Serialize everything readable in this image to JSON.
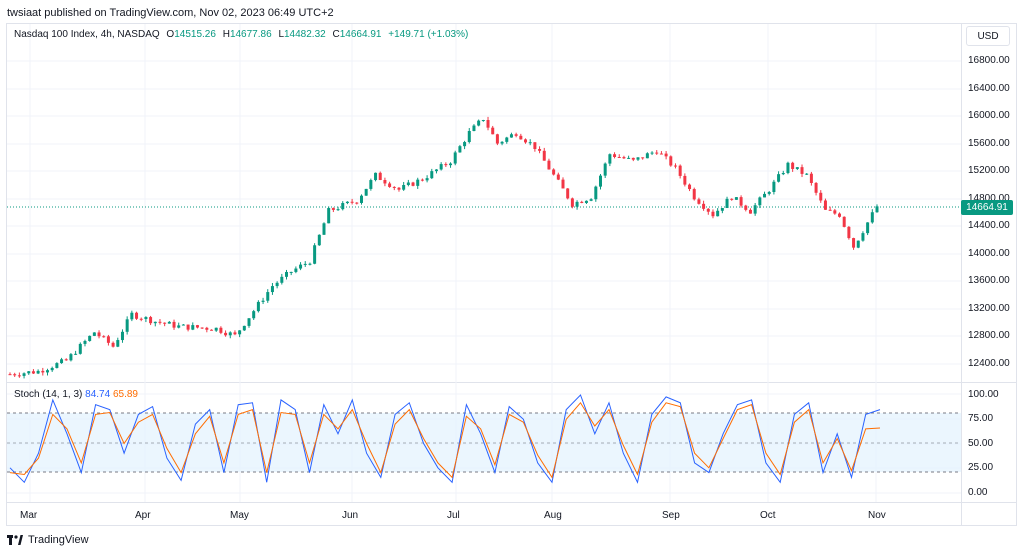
{
  "header": {
    "publisher_line": "twsiaat published on TradingView.com, Nov 02, 2023 06:49 UTC+2"
  },
  "symbol": {
    "name": "Nasdaq 100 Index, 4h, NASDAQ",
    "open_label": "O",
    "open": "14515.26",
    "high_label": "H",
    "high": "14677.86",
    "low_label": "L",
    "low": "14482.32",
    "close_label": "C",
    "close": "14664.91",
    "change": "+149.71 (+1.03%)"
  },
  "currency": "USD",
  "last_price": "14664.91",
  "price_axis": [
    "16800.00",
    "16400.00",
    "16000.00",
    "15600.00",
    "15200.00",
    "14800.00",
    "14400.00",
    "14000.00",
    "13600.00",
    "13200.00",
    "12800.00",
    "12400.00"
  ],
  "stoch": {
    "label": "Stoch (14, 1, 3)",
    "k": "84.74",
    "d": "65.89"
  },
  "stoch_axis": [
    "100.00",
    "75.00",
    "50.00",
    "25.00",
    "0.00"
  ],
  "time_axis": [
    "Mar",
    "Apr",
    "May",
    "Jun",
    "Jul",
    "Aug",
    "Sep",
    "Oct",
    "Nov"
  ],
  "footer": {
    "brand": "TradingView"
  },
  "colors": {
    "up": "#089981",
    "down": "#f23645",
    "k_line": "#2962ff",
    "d_line": "#ff6d00",
    "band": "#e3f2fd"
  },
  "chart_data": {
    "type": "candlestick",
    "title": "Nasdaq 100 Index, 4h, NASDAQ",
    "ylim": [
      12200,
      17000
    ],
    "price_path": [
      {
        "x": 0,
        "y": 12310
      },
      {
        "x": 6,
        "y": 12350
      },
      {
        "x": 12,
        "y": 12500
      },
      {
        "x": 18,
        "y": 12900
      },
      {
        "x": 22,
        "y": 12700
      },
      {
        "x": 26,
        "y": 13150
      },
      {
        "x": 31,
        "y": 13050
      },
      {
        "x": 36,
        "y": 12980
      },
      {
        "x": 44,
        "y": 12950
      },
      {
        "x": 48,
        "y": 12850
      },
      {
        "x": 56,
        "y": 13550
      },
      {
        "x": 60,
        "y": 13750
      },
      {
        "x": 64,
        "y": 13900
      },
      {
        "x": 68,
        "y": 14600
      },
      {
        "x": 74,
        "y": 14750
      },
      {
        "x": 78,
        "y": 15100
      },
      {
        "x": 83,
        "y": 14900
      },
      {
        "x": 88,
        "y": 15050
      },
      {
        "x": 94,
        "y": 15300
      },
      {
        "x": 98,
        "y": 15700
      },
      {
        "x": 101,
        "y": 15900
      },
      {
        "x": 104,
        "y": 15550
      },
      {
        "x": 108,
        "y": 15700
      },
      {
        "x": 112,
        "y": 15500
      },
      {
        "x": 116,
        "y": 15100
      },
      {
        "x": 120,
        "y": 14700
      },
      {
        "x": 124,
        "y": 14800
      },
      {
        "x": 128,
        "y": 15400
      },
      {
        "x": 133,
        "y": 15300
      },
      {
        "x": 138,
        "y": 15450
      },
      {
        "x": 142,
        "y": 15200
      },
      {
        "x": 146,
        "y": 14800
      },
      {
        "x": 150,
        "y": 14550
      },
      {
        "x": 154,
        "y": 14800
      },
      {
        "x": 158,
        "y": 14600
      },
      {
        "x": 162,
        "y": 14900
      },
      {
        "x": 166,
        "y": 15250
      },
      {
        "x": 170,
        "y": 15100
      },
      {
        "x": 174,
        "y": 14600
      },
      {
        "x": 177,
        "y": 14550
      },
      {
        "x": 180,
        "y": 14100
      },
      {
        "x": 185,
        "y": 14665
      }
    ],
    "stoch_k": [
      25,
      10,
      40,
      95,
      60,
      20,
      90,
      85,
      40,
      80,
      88,
      35,
      12,
      70,
      85,
      20,
      90,
      92,
      10,
      95,
      85,
      20,
      90,
      60,
      95,
      40,
      15,
      80,
      92,
      50,
      25,
      10,
      90,
      60,
      20,
      88,
      75,
      30,
      10,
      85,
      100,
      60,
      92,
      40,
      10,
      80,
      98,
      92,
      30,
      20,
      60,
      90,
      95,
      30,
      10,
      80,
      92,
      20,
      60,
      15,
      80,
      85
    ],
    "stoch_d": [
      20,
      18,
      35,
      80,
      65,
      30,
      80,
      82,
      50,
      72,
      80,
      45,
      20,
      60,
      78,
      30,
      80,
      85,
      20,
      82,
      80,
      30,
      80,
      65,
      85,
      50,
      20,
      70,
      85,
      55,
      30,
      15,
      78,
      65,
      28,
      80,
      72,
      38,
      15,
      75,
      92,
      68,
      85,
      48,
      18,
      72,
      92,
      88,
      40,
      25,
      55,
      85,
      90,
      40,
      18,
      72,
      85,
      30,
      55,
      22,
      65,
      66
    ]
  }
}
